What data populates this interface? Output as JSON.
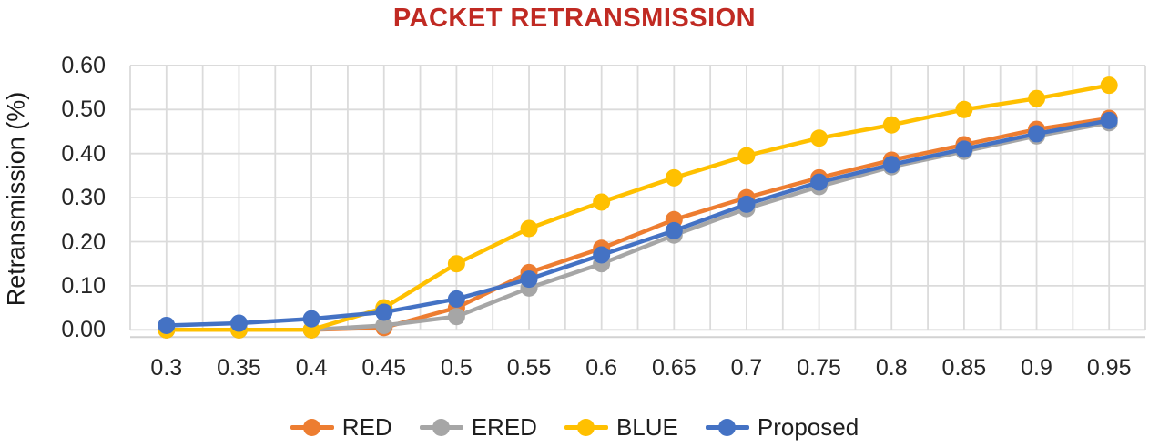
{
  "chart_data": {
    "type": "line",
    "title": "PACKET RETRANSMISSION",
    "title_color": "#C02A23",
    "xlabel": "",
    "ylabel": "Retransmission (%)",
    "categories": [
      "0.3",
      "0.35",
      "0.4",
      "0.45",
      "0.5",
      "0.55",
      "0.6",
      "0.65",
      "0.7",
      "0.75",
      "0.8",
      "0.85",
      "0.9",
      "0.95"
    ],
    "y_ticks": [
      {
        "label": "0.00",
        "value": 0.0
      },
      {
        "label": "0.10",
        "value": 0.1
      },
      {
        "label": "0.20",
        "value": 0.2
      },
      {
        "label": "0.30",
        "value": 0.3
      },
      {
        "label": "0.40",
        "value": 0.4
      },
      {
        "label": "0.50",
        "value": 0.5
      },
      {
        "label": "0.60",
        "value": 0.6
      }
    ],
    "ylim": [
      0.0,
      0.6
    ],
    "grid": "on (minor vertical gridlines every half category, major horizontal every 0.10)",
    "gridline_color": "#DBDBDB",
    "axis_line_color": "#D2D2D2",
    "legend_position": "bottom",
    "marker": "circle",
    "series": [
      {
        "name": "RED",
        "color": "#ED7D31",
        "values": [
          0.0,
          0.0,
          0.0,
          0.005,
          0.05,
          0.13,
          0.185,
          0.25,
          0.3,
          0.345,
          0.385,
          0.42,
          0.455,
          0.48
        ]
      },
      {
        "name": "ERED",
        "color": "#A6A6A6",
        "values": [
          0.0,
          0.0,
          0.0,
          0.01,
          0.03,
          0.095,
          0.15,
          0.215,
          0.275,
          0.325,
          0.37,
          0.405,
          0.44,
          0.47
        ]
      },
      {
        "name": "BLUE",
        "color": "#FFC000",
        "values": [
          0.0,
          0.0,
          0.0,
          0.05,
          0.15,
          0.23,
          0.29,
          0.345,
          0.395,
          0.435,
          0.465,
          0.5,
          0.525,
          0.555
        ]
      },
      {
        "name": "Proposed",
        "color": "#4472C4",
        "values": [
          0.01,
          0.015,
          0.025,
          0.04,
          0.07,
          0.115,
          0.17,
          0.225,
          0.285,
          0.335,
          0.375,
          0.41,
          0.445,
          0.475
        ]
      }
    ]
  }
}
